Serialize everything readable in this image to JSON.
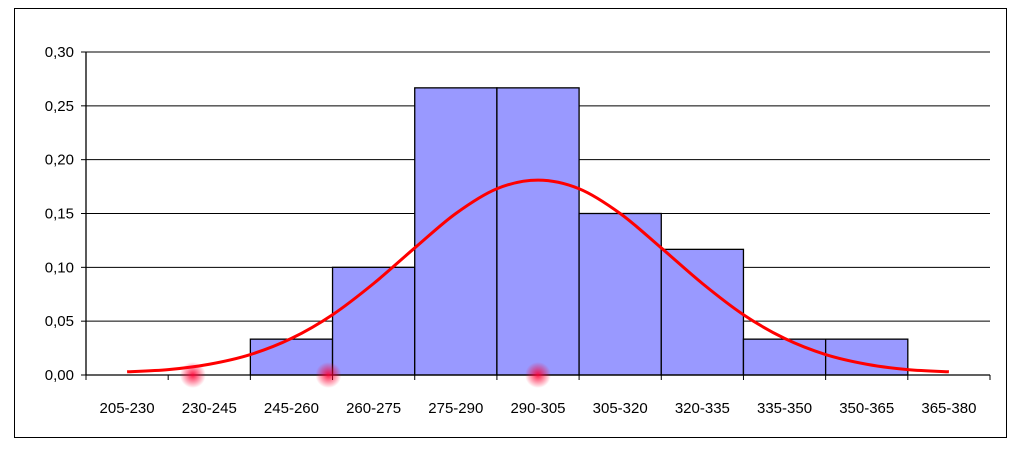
{
  "chart_data": {
    "type": "bar",
    "title": "",
    "xlabel": "",
    "ylabel": "",
    "categories": [
      "205-230",
      "230-245",
      "245-260",
      "260-275",
      "275-290",
      "290-305",
      "305-320",
      "320-335",
      "335-350",
      "350-365",
      "365-380"
    ],
    "series": [
      {
        "type": "bar",
        "color": "#9999ff",
        "values": [
          0,
          0,
          0.0333,
          0.1,
          0.2667,
          0.2667,
          0.15,
          0.1167,
          0.0333,
          0.0333,
          0
        ]
      },
      {
        "type": "line",
        "color": "#ff0000",
        "x": [
          0.5,
          1,
          1.5,
          2,
          2.5,
          3,
          3.5,
          4,
          4.5,
          5,
          5.5,
          6,
          6.5,
          7,
          7.5,
          8,
          8.5,
          9,
          9.5,
          10,
          10.5
        ],
        "values": [
          0.003,
          0.005,
          0.01,
          0.019,
          0.034,
          0.056,
          0.085,
          0.118,
          0.15,
          0.173,
          0.181,
          0.173,
          0.15,
          0.118,
          0.085,
          0.056,
          0.034,
          0.019,
          0.01,
          0.005,
          0.003
        ]
      }
    ],
    "yticks": [
      "0,00",
      "0,05",
      "0,10",
      "0,15",
      "0,20",
      "0,25",
      "0,30"
    ],
    "ylim": [
      0,
      0.3
    ],
    "grid": true,
    "legend": "none"
  },
  "colors": {
    "bar_fill": "#9999ff",
    "curve": "#ff0000",
    "grid": "#000000"
  }
}
